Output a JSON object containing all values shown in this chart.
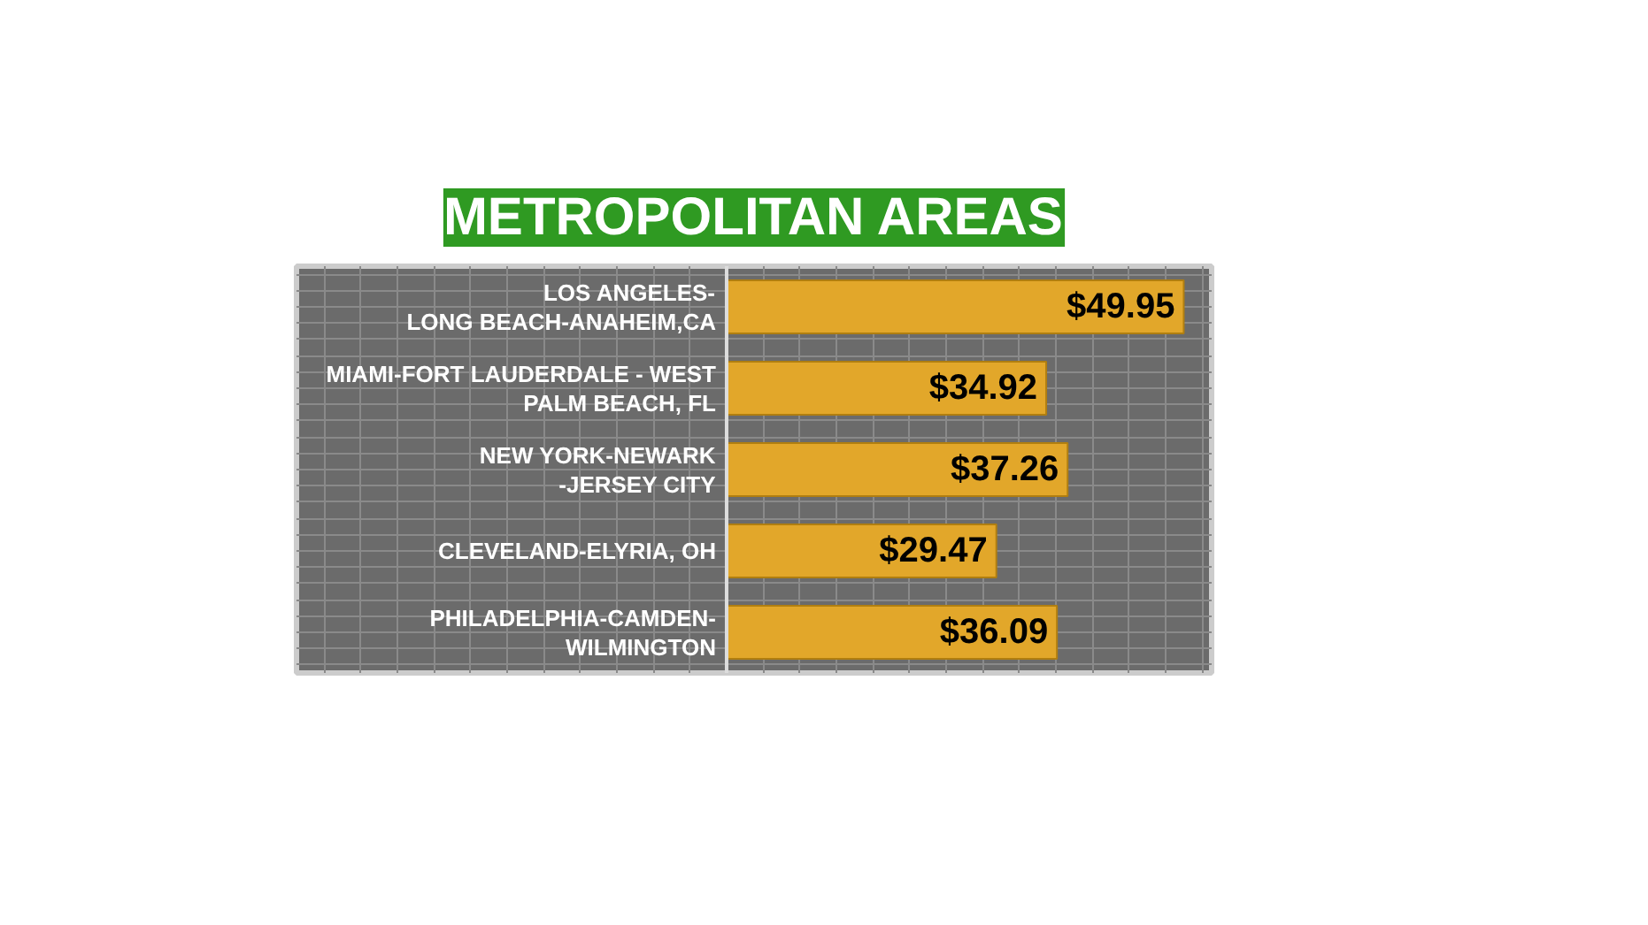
{
  "chart_data": {
    "type": "bar",
    "orientation": "horizontal",
    "title": "METROPOLITAN AREAS",
    "categories": [
      "LOS ANGELES-\nLONG BEACH-ANAHEIM,CA",
      "MIAMI-FORT LAUDERDALE - WEST\nPALM BEACH, FL",
      "NEW YORK-NEWARK\n-JERSEY CITY",
      "CLEVELAND-ELYRIA, OH",
      "PHILADELPHIA-CAMDEN-\nWILMINGTON"
    ],
    "values": [
      49.95,
      34.92,
      37.26,
      29.47,
      36.09
    ],
    "value_labels": [
      "$49.95",
      "$34.92",
      "$37.26",
      "$29.47",
      "$36.09"
    ],
    "color": "#e2a72a",
    "xlim": [
      -47,
      53
    ],
    "tick_labels": false,
    "grid": true
  }
}
